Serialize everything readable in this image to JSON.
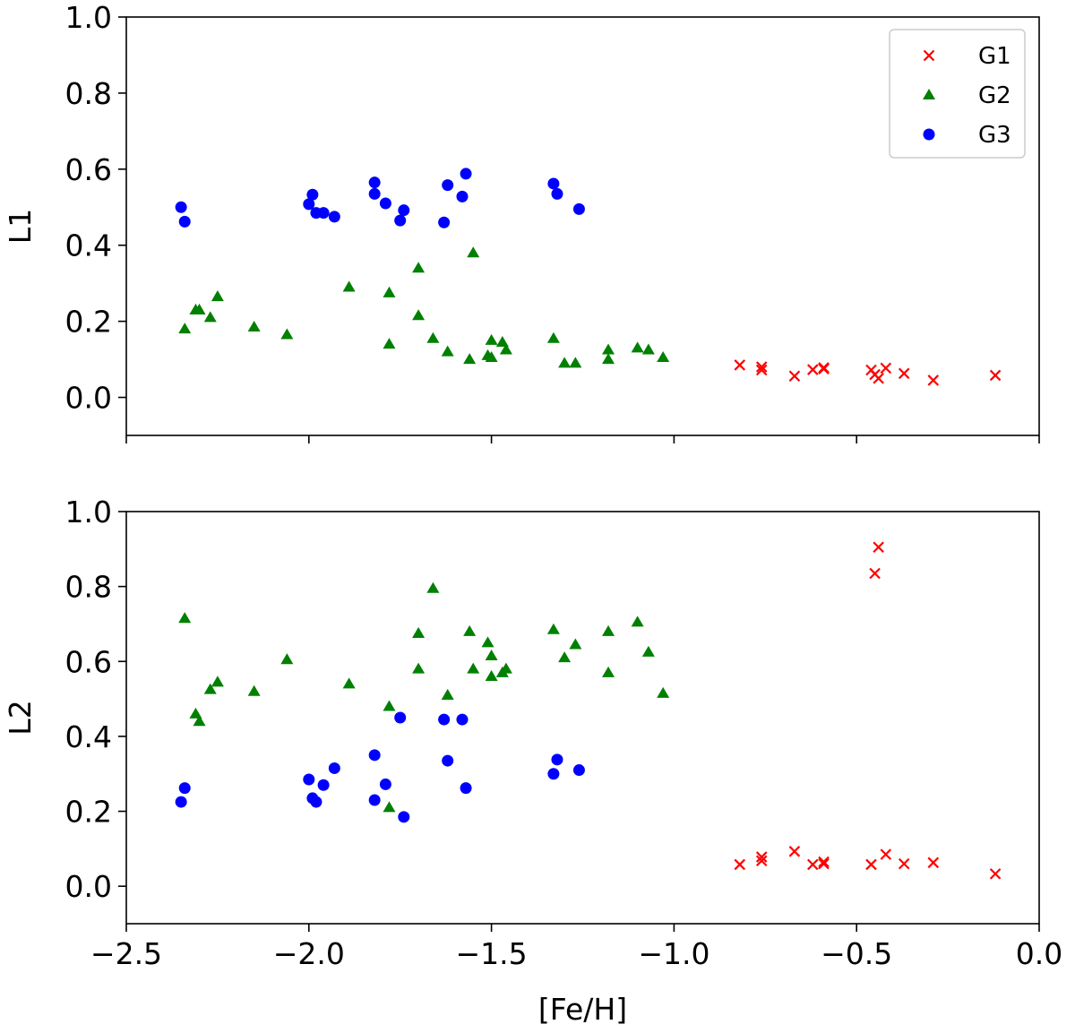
{
  "figure": {
    "xlabel": "[Fe/H]"
  },
  "chart_data": [
    {
      "type": "scatter",
      "ylabel": "L1",
      "xlim": [
        -2.5,
        0.0
      ],
      "ylim": [
        -0.1,
        1.0
      ],
      "xticks": [
        -2.5,
        -2.0,
        -1.5,
        -1.0,
        -0.5,
        0.0
      ],
      "yticks": [
        0.0,
        0.2,
        0.4,
        0.6,
        0.8,
        1.0
      ],
      "show_x_tick_labels": false,
      "legend": "top-right",
      "series": [
        {
          "name": "G1",
          "marker": "x",
          "color": "#ff0000",
          "points": [
            [
              -0.82,
              0.085
            ],
            [
              -0.76,
              0.08
            ],
            [
              -0.76,
              0.072
            ],
            [
              -0.67,
              0.056
            ],
            [
              -0.62,
              0.073
            ],
            [
              -0.59,
              0.078
            ],
            [
              -0.59,
              0.075
            ],
            [
              -0.46,
              0.072
            ],
            [
              -0.45,
              0.06
            ],
            [
              -0.44,
              0.05
            ],
            [
              -0.42,
              0.077
            ],
            [
              -0.37,
              0.063
            ],
            [
              -0.29,
              0.045
            ],
            [
              -0.12,
              0.058
            ]
          ]
        },
        {
          "name": "G2",
          "marker": "triangle",
          "color": "#008000",
          "points": [
            [
              -2.34,
              0.18
            ],
            [
              -2.31,
              0.23
            ],
            [
              -2.3,
              0.23
            ],
            [
              -2.27,
              0.21
            ],
            [
              -2.25,
              0.265
            ],
            [
              -2.15,
              0.185
            ],
            [
              -2.06,
              0.165
            ],
            [
              -1.89,
              0.29
            ],
            [
              -1.78,
              0.275
            ],
            [
              -1.78,
              0.14
            ],
            [
              -1.7,
              0.34
            ],
            [
              -1.7,
              0.215
            ],
            [
              -1.66,
              0.155
            ],
            [
              -1.62,
              0.12
            ],
            [
              -1.56,
              0.1
            ],
            [
              -1.55,
              0.38
            ],
            [
              -1.51,
              0.11
            ],
            [
              -1.5,
              0.105
            ],
            [
              -1.5,
              0.15
            ],
            [
              -1.47,
              0.145
            ],
            [
              -1.46,
              0.125
            ],
            [
              -1.33,
              0.155
            ],
            [
              -1.3,
              0.09
            ],
            [
              -1.27,
              0.09
            ],
            [
              -1.18,
              0.125
            ],
            [
              -1.18,
              0.1
            ],
            [
              -1.1,
              0.13
            ],
            [
              -1.07,
              0.125
            ],
            [
              -1.03,
              0.105
            ]
          ]
        },
        {
          "name": "G3",
          "marker": "circle",
          "color": "#0000ff",
          "points": [
            [
              -2.35,
              0.5
            ],
            [
              -2.34,
              0.462
            ],
            [
              -2.0,
              0.508
            ],
            [
              -1.99,
              0.533
            ],
            [
              -1.98,
              0.485
            ],
            [
              -1.96,
              0.485
            ],
            [
              -1.93,
              0.475
            ],
            [
              -1.82,
              0.565
            ],
            [
              -1.82,
              0.535
            ],
            [
              -1.79,
              0.51
            ],
            [
              -1.75,
              0.465
            ],
            [
              -1.74,
              0.492
            ],
            [
              -1.63,
              0.46
            ],
            [
              -1.62,
              0.558
            ],
            [
              -1.58,
              0.528
            ],
            [
              -1.57,
              0.588
            ],
            [
              -1.33,
              0.562
            ],
            [
              -1.32,
              0.535
            ],
            [
              -1.26,
              0.495
            ]
          ]
        }
      ]
    },
    {
      "type": "scatter",
      "ylabel": "L2",
      "xlim": [
        -2.5,
        0.0
      ],
      "ylim": [
        -0.1,
        1.0
      ],
      "xticks": [
        -2.5,
        -2.0,
        -1.5,
        -1.0,
        -0.5,
        0.0
      ],
      "yticks": [
        0.0,
        0.2,
        0.4,
        0.6,
        0.8,
        1.0
      ],
      "show_x_tick_labels": true,
      "series": [
        {
          "name": "G1",
          "marker": "x",
          "color": "#ff0000",
          "points": [
            [
              -0.82,
              0.058
            ],
            [
              -0.76,
              0.078
            ],
            [
              -0.76,
              0.068
            ],
            [
              -0.67,
              0.093
            ],
            [
              -0.62,
              0.058
            ],
            [
              -0.59,
              0.065
            ],
            [
              -0.59,
              0.06
            ],
            [
              -0.46,
              0.058
            ],
            [
              -0.45,
              0.835
            ],
            [
              -0.44,
              0.905
            ],
            [
              -0.42,
              0.085
            ],
            [
              -0.37,
              0.06
            ],
            [
              -0.29,
              0.063
            ],
            [
              -0.12,
              0.033
            ]
          ]
        },
        {
          "name": "G2",
          "marker": "triangle",
          "color": "#008000",
          "points": [
            [
              -2.34,
              0.715
            ],
            [
              -2.31,
              0.46
            ],
            [
              -2.3,
              0.44
            ],
            [
              -2.27,
              0.525
            ],
            [
              -2.25,
              0.545
            ],
            [
              -2.15,
              0.52
            ],
            [
              -2.06,
              0.605
            ],
            [
              -1.89,
              0.54
            ],
            [
              -1.78,
              0.48
            ],
            [
              -1.78,
              0.21
            ],
            [
              -1.7,
              0.675
            ],
            [
              -1.7,
              0.58
            ],
            [
              -1.66,
              0.795
            ],
            [
              -1.62,
              0.51
            ],
            [
              -1.56,
              0.68
            ],
            [
              -1.55,
              0.58
            ],
            [
              -1.51,
              0.65
            ],
            [
              -1.5,
              0.615
            ],
            [
              -1.5,
              0.56
            ],
            [
              -1.47,
              0.57
            ],
            [
              -1.46,
              0.58
            ],
            [
              -1.33,
              0.685
            ],
            [
              -1.3,
              0.61
            ],
            [
              -1.27,
              0.645
            ],
            [
              -1.18,
              0.68
            ],
            [
              -1.18,
              0.57
            ],
            [
              -1.1,
              0.705
            ],
            [
              -1.07,
              0.625
            ],
            [
              -1.03,
              0.515
            ]
          ]
        },
        {
          "name": "G3",
          "marker": "circle",
          "color": "#0000ff",
          "points": [
            [
              -2.35,
              0.225
            ],
            [
              -2.34,
              0.262
            ],
            [
              -2.0,
              0.285
            ],
            [
              -1.99,
              0.235
            ],
            [
              -1.98,
              0.225
            ],
            [
              -1.96,
              0.27
            ],
            [
              -1.93,
              0.315
            ],
            [
              -1.82,
              0.35
            ],
            [
              -1.82,
              0.23
            ],
            [
              -1.79,
              0.272
            ],
            [
              -1.75,
              0.45
            ],
            [
              -1.74,
              0.185
            ],
            [
              -1.63,
              0.445
            ],
            [
              -1.62,
              0.335
            ],
            [
              -1.58,
              0.445
            ],
            [
              -1.57,
              0.262
            ],
            [
              -1.33,
              0.3
            ],
            [
              -1.32,
              0.338
            ],
            [
              -1.26,
              0.31
            ]
          ]
        }
      ]
    }
  ]
}
